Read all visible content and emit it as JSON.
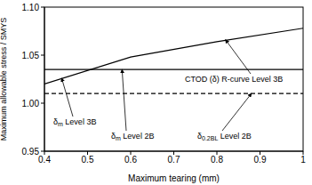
{
  "chart_data": {
    "type": "line",
    "x_label": "Maximum tearing (mm)",
    "y_label": "Maximum allowable stress / SMYS",
    "xlim": [
      0.4,
      1
    ],
    "xticks": [
      0.4,
      0.5,
      0.6,
      0.7,
      0.8,
      0.9,
      1
    ],
    "ylim": [
      0.95,
      1.1
    ],
    "yticks": [
      0.95,
      {
        "value": 1,
        "label": "1.00"
      },
      1.05,
      {
        "value": 1.1,
        "label": "1.10"
      }
    ],
    "grid": false,
    "series": [
      {
        "x": [
          0.4,
          0.6,
          0.8,
          1
        ],
        "values": [
          1.02,
          1.048,
          1.064,
          1.078
        ],
        "color": "#000000",
        "line_style": "solid"
      },
      {
        "x": [
          0.4,
          1
        ],
        "values": [
          1.035,
          1.035
        ],
        "color": "#000000",
        "line_style": "solid"
      },
      {
        "x": [
          0.4,
          1
        ],
        "values": [
          1.01,
          1.01
        ],
        "color": "#000000",
        "line_style": "dashed"
      }
    ],
    "annotations": [
      {
        "text": "δm Level 3B",
        "x": 0.44,
        "y": 1.026
      },
      {
        "text": "δm Level 2B",
        "x": 0.58,
        "y": 1.035
      },
      {
        "text": "δ0.2BL Level 2B",
        "x": 0.88,
        "y": 1.01
      },
      {
        "text": "CTOD (δ) R-curve Level 3B",
        "x": 0.82,
        "y": 1.066
      }
    ]
  }
}
